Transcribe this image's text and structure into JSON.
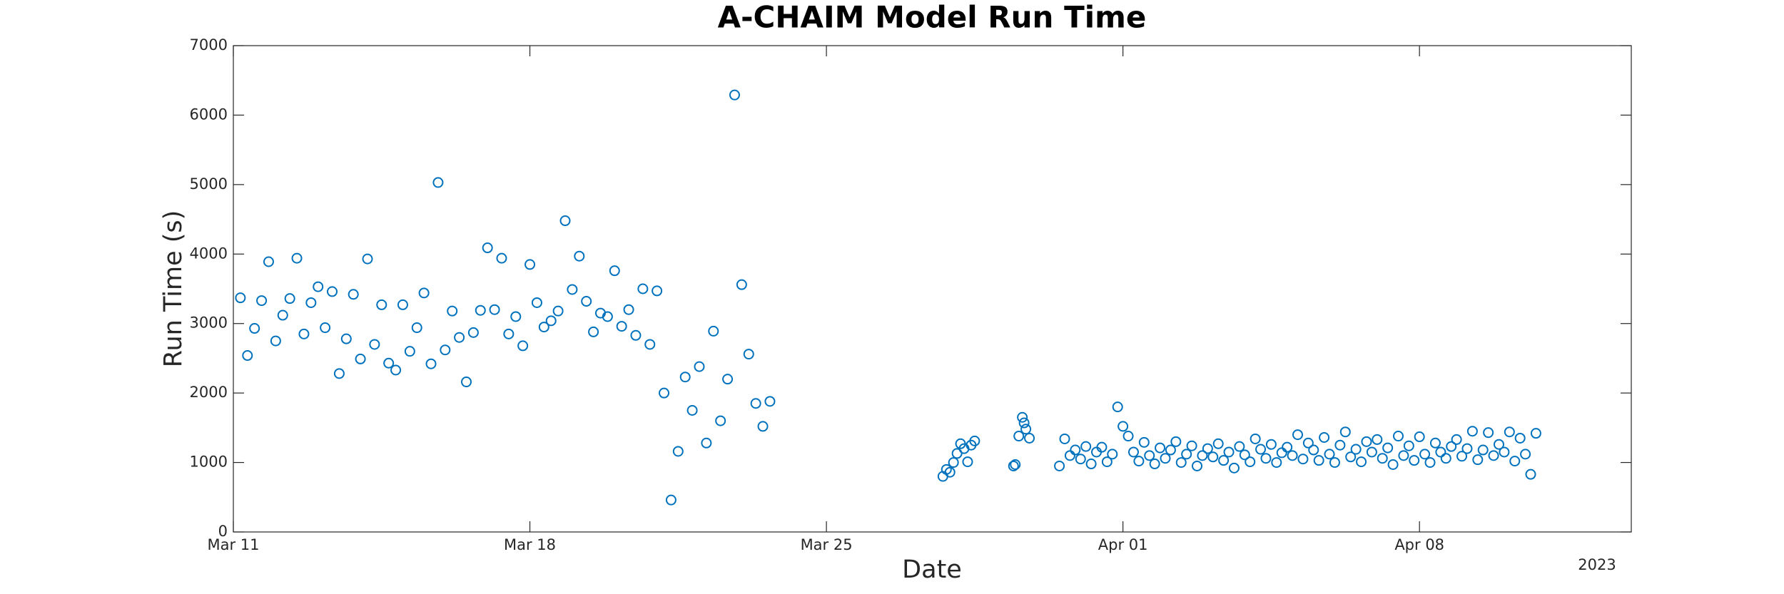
{
  "chart_data": {
    "type": "scatter",
    "title": "A-CHAIM Model Run Time",
    "xlabel": "Date",
    "ylabel": "Run Time (s)",
    "year_label": "2023",
    "xlim": [
      "2023-03-11 00:00",
      "2023-04-13 00:00"
    ],
    "xticks": [
      {
        "value": "2023-03-11 00:00",
        "label": "Mar 11"
      },
      {
        "value": "2023-03-18 00:00",
        "label": "Mar 18"
      },
      {
        "value": "2023-03-25 00:00",
        "label": "Mar 25"
      },
      {
        "value": "2023-04-01 00:00",
        "label": "Apr 01"
      },
      {
        "value": "2023-04-08 00:00",
        "label": "Apr 08"
      }
    ],
    "ylim": [
      0,
      7000
    ],
    "yticks": [
      0,
      1000,
      2000,
      3000,
      4000,
      5000,
      6000,
      7000
    ],
    "grid": false,
    "x": [
      "2023-03-11 04:00",
      "2023-03-11 08:00",
      "2023-03-11 12:00",
      "2023-03-11 16:00",
      "2023-03-11 20:00",
      "2023-03-12 00:00",
      "2023-03-12 04:00",
      "2023-03-12 08:00",
      "2023-03-12 12:00",
      "2023-03-12 16:00",
      "2023-03-12 20:00",
      "2023-03-13 00:00",
      "2023-03-13 04:00",
      "2023-03-13 08:00",
      "2023-03-13 12:00",
      "2023-03-13 16:00",
      "2023-03-13 20:00",
      "2023-03-14 00:00",
      "2023-03-14 04:00",
      "2023-03-14 08:00",
      "2023-03-14 12:00",
      "2023-03-14 16:00",
      "2023-03-14 20:00",
      "2023-03-15 00:00",
      "2023-03-15 04:00",
      "2023-03-15 08:00",
      "2023-03-15 12:00",
      "2023-03-15 16:00",
      "2023-03-15 20:00",
      "2023-03-16 00:00",
      "2023-03-16 04:00",
      "2023-03-16 08:00",
      "2023-03-16 12:00",
      "2023-03-16 16:00",
      "2023-03-16 20:00",
      "2023-03-17 00:00",
      "2023-03-17 04:00",
      "2023-03-17 08:00",
      "2023-03-17 12:00",
      "2023-03-17 16:00",
      "2023-03-17 20:00",
      "2023-03-18 00:00",
      "2023-03-18 04:00",
      "2023-03-18 08:00",
      "2023-03-18 12:00",
      "2023-03-18 16:00",
      "2023-03-18 20:00",
      "2023-03-19 00:00",
      "2023-03-19 04:00",
      "2023-03-19 08:00",
      "2023-03-19 12:00",
      "2023-03-19 16:00",
      "2023-03-19 20:00",
      "2023-03-20 00:00",
      "2023-03-20 04:00",
      "2023-03-20 08:00",
      "2023-03-20 12:00",
      "2023-03-20 16:00",
      "2023-03-20 20:00",
      "2023-03-21 00:00",
      "2023-03-21 04:00",
      "2023-03-21 08:00",
      "2023-03-21 12:00",
      "2023-03-21 16:00",
      "2023-03-21 20:00",
      "2023-03-22 00:00",
      "2023-03-22 04:00",
      "2023-03-22 08:00",
      "2023-03-22 12:00",
      "2023-03-22 16:00",
      "2023-03-22 20:00",
      "2023-03-23 00:00",
      "2023-03-23 04:00",
      "2023-03-23 08:00",
      "2023-03-23 12:00",
      "2023-03-23 16:00",
      "2023-03-27 18:00",
      "2023-03-27 20:00",
      "2023-03-27 22:00",
      "2023-03-28 00:00",
      "2023-03-28 02:00",
      "2023-03-28 04:00",
      "2023-03-28 06:00",
      "2023-03-28 08:00",
      "2023-03-28 10:00",
      "2023-03-28 12:00",
      "2023-03-29 10:00",
      "2023-03-29 11:00",
      "2023-03-29 13:00",
      "2023-03-29 15:00",
      "2023-03-29 16:00",
      "2023-03-29 17:00",
      "2023-03-29 19:00",
      "2023-03-30 12:00",
      "2023-03-30 15:00",
      "2023-03-30 18:00",
      "2023-03-30 21:00",
      "2023-03-31 00:00",
      "2023-03-31 03:00",
      "2023-03-31 06:00",
      "2023-03-31 09:00",
      "2023-03-31 12:00",
      "2023-03-31 15:00",
      "2023-03-31 18:00",
      "2023-03-31 21:00",
      "2023-04-01 00:00",
      "2023-04-01 03:00",
      "2023-04-01 06:00",
      "2023-04-01 09:00",
      "2023-04-01 12:00",
      "2023-04-01 15:00",
      "2023-04-01 18:00",
      "2023-04-01 21:00",
      "2023-04-02 00:00",
      "2023-04-02 03:00",
      "2023-04-02 06:00",
      "2023-04-02 09:00",
      "2023-04-02 12:00",
      "2023-04-02 15:00",
      "2023-04-02 18:00",
      "2023-04-02 21:00",
      "2023-04-03 00:00",
      "2023-04-03 03:00",
      "2023-04-03 06:00",
      "2023-04-03 09:00",
      "2023-04-03 12:00",
      "2023-04-03 15:00",
      "2023-04-03 18:00",
      "2023-04-03 21:00",
      "2023-04-04 00:00",
      "2023-04-04 03:00",
      "2023-04-04 06:00",
      "2023-04-04 09:00",
      "2023-04-04 12:00",
      "2023-04-04 15:00",
      "2023-04-04 18:00",
      "2023-04-04 21:00",
      "2023-04-05 00:00",
      "2023-04-05 03:00",
      "2023-04-05 06:00",
      "2023-04-05 09:00",
      "2023-04-05 12:00",
      "2023-04-05 15:00",
      "2023-04-05 18:00",
      "2023-04-05 21:00",
      "2023-04-06 00:00",
      "2023-04-06 03:00",
      "2023-04-06 06:00",
      "2023-04-06 09:00",
      "2023-04-06 12:00",
      "2023-04-06 15:00",
      "2023-04-06 18:00",
      "2023-04-06 21:00",
      "2023-04-07 00:00",
      "2023-04-07 03:00",
      "2023-04-07 06:00",
      "2023-04-07 09:00",
      "2023-04-07 12:00",
      "2023-04-07 15:00",
      "2023-04-07 18:00",
      "2023-04-07 21:00",
      "2023-04-08 00:00",
      "2023-04-08 03:00",
      "2023-04-08 06:00",
      "2023-04-08 09:00",
      "2023-04-08 12:00",
      "2023-04-08 15:00",
      "2023-04-08 18:00",
      "2023-04-08 21:00",
      "2023-04-09 00:00",
      "2023-04-09 03:00",
      "2023-04-09 06:00",
      "2023-04-09 09:00",
      "2023-04-09 12:00",
      "2023-04-09 15:00",
      "2023-04-09 18:00",
      "2023-04-09 21:00",
      "2023-04-10 00:00",
      "2023-04-10 03:00",
      "2023-04-10 06:00",
      "2023-04-10 09:00",
      "2023-04-10 12:00",
      "2023-04-10 15:00",
      "2023-04-10 18:00"
    ],
    "series": [
      {
        "color": "#0072bd",
        "values": [
          3370,
          2540,
          2930,
          3330,
          3890,
          2750,
          3120,
          3360,
          3940,
          2850,
          3300,
          3530,
          2940,
          3460,
          2280,
          2780,
          3420,
          2490,
          3930,
          2700,
          3270,
          2430,
          2330,
          3270,
          2600,
          2940,
          3440,
          2420,
          5030,
          2620,
          3180,
          2800,
          2160,
          2870,
          3190,
          4090,
          3200,
          3940,
          2850,
          3100,
          2680,
          3850,
          3300,
          2950,
          3040,
          3180,
          4480,
          3490,
          3970,
          3320,
          2880,
          3150,
          3100,
          3760,
          2960,
          3200,
          2830,
          3500,
          2700,
          3470,
          2000,
          460,
          1160,
          2230,
          1750,
          2380,
          1280,
          2890,
          1600,
          2200,
          6290,
          3560,
          2560,
          1850,
          1520,
          1880,
          800,
          900,
          860,
          1000,
          1130,
          1270,
          1200,
          1010,
          1250,
          1310,
          950,
          970,
          1380,
          1650,
          1570,
          1480,
          1350,
          950,
          1340,
          1100,
          1180,
          1050,
          1230,
          980,
          1150,
          1220,
          1010,
          1120,
          1800,
          1520,
          1380,
          1150,
          1020,
          1290,
          1100,
          980,
          1210,
          1060,
          1180,
          1300,
          1000,
          1120,
          1240,
          950,
          1100,
          1200,
          1080,
          1270,
          1030,
          1150,
          920,
          1230,
          1110,
          1010,
          1340,
          1190,
          1060,
          1260,
          1000,
          1140,
          1220,
          1100,
          1400,
          1050,
          1280,
          1180,
          1030,
          1360,
          1120,
          1000,
          1250,
          1440,
          1080,
          1190,
          1010,
          1300,
          1150,
          1330,
          1060,
          1210,
          970,
          1380,
          1100,
          1240,
          1030,
          1370,
          1120,
          1000,
          1280,
          1150,
          1060,
          1230,
          1330,
          1090,
          1200,
          1450,
          1040,
          1180,
          1430,
          1100,
          1260,
          1150,
          1440,
          1020,
          1350,
          1120,
          830,
          1420
        ]
      }
    ]
  }
}
